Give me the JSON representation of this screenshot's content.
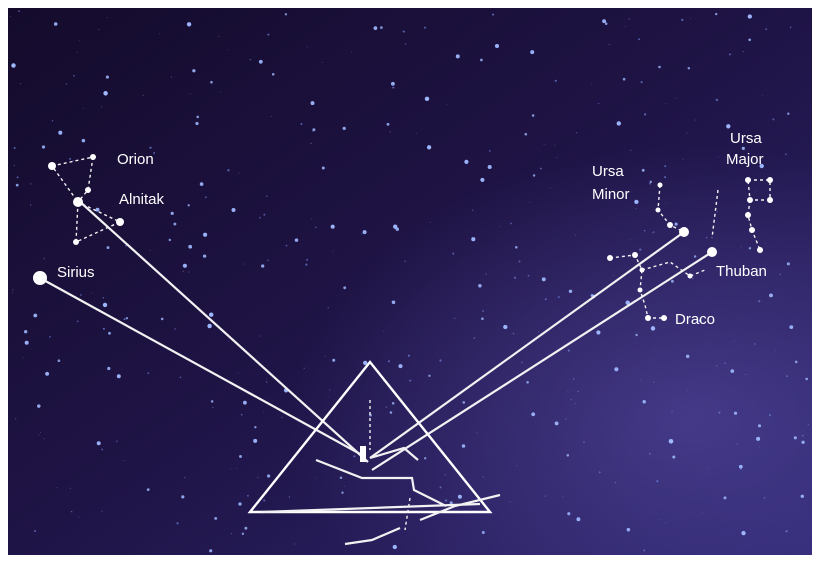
{
  "labels": {
    "orion": [
      "Orion"
    ],
    "alnitak": [
      "Alnitak"
    ],
    "sirius": [
      "Sirius"
    ],
    "ursa_minor": [
      "Ursa",
      "Minor"
    ],
    "ursa_major": [
      "Ursa",
      "Major"
    ],
    "thuban": [
      "Thuban"
    ],
    "draco": [
      "Draco"
    ]
  }
}
